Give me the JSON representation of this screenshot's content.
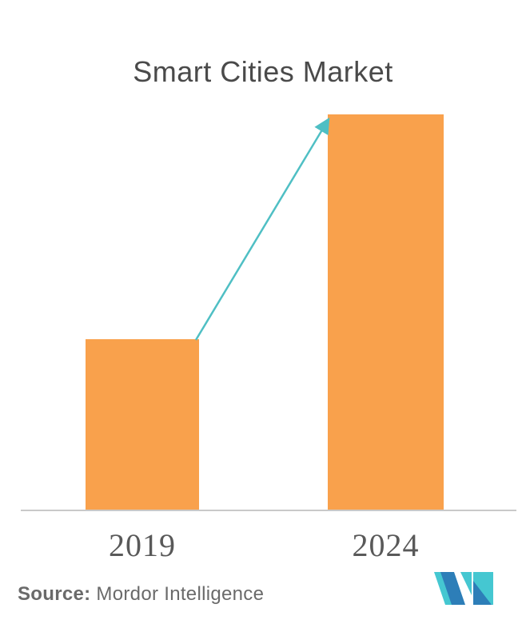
{
  "title": {
    "text": "Smart Cities Market",
    "color": "#4A4A4A"
  },
  "chart_data": {
    "type": "bar",
    "title": "Smart Cities Market",
    "categories": [
      "2019",
      "2024"
    ],
    "values": [
      43.1,
      100
    ],
    "value_note": "no y-axis shown; values are relative heights, 2024 bar = 100",
    "xlabel": "",
    "ylabel": "",
    "grid": false,
    "legend": false,
    "bar_color": "#F9A14C",
    "axis_line_color": "#C9C9C9",
    "tick_label_color": "#595959",
    "annotation": {
      "type": "growth-arrow",
      "from": "top of 2019 bar",
      "to": "top of 2024 bar",
      "color": "#4FBFC4"
    }
  },
  "source": {
    "label": "Source:",
    "text": " Mordor Intelligence",
    "color": "#6A6A6A"
  },
  "logo": {
    "name": "mordor-intelligence-logo",
    "teal": "#45C7D1",
    "blue": "#2D7EB8"
  }
}
